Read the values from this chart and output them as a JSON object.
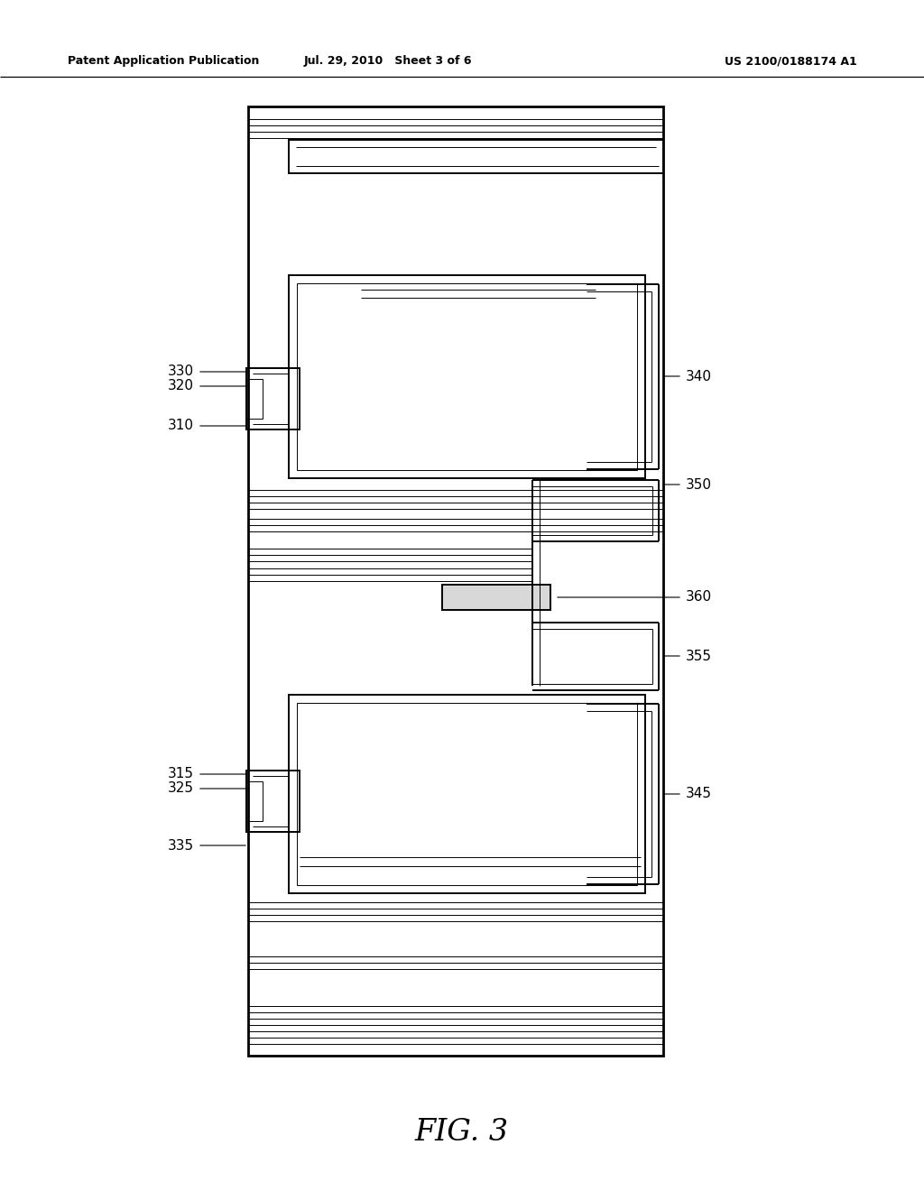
{
  "header_left": "Patent Application Publication",
  "header_mid": "Jul. 29, 2010   Sheet 3 of 6",
  "header_right": "US 2100/0188174 A1",
  "fig_label": "FIG. 3",
  "bg": "#ffffff"
}
